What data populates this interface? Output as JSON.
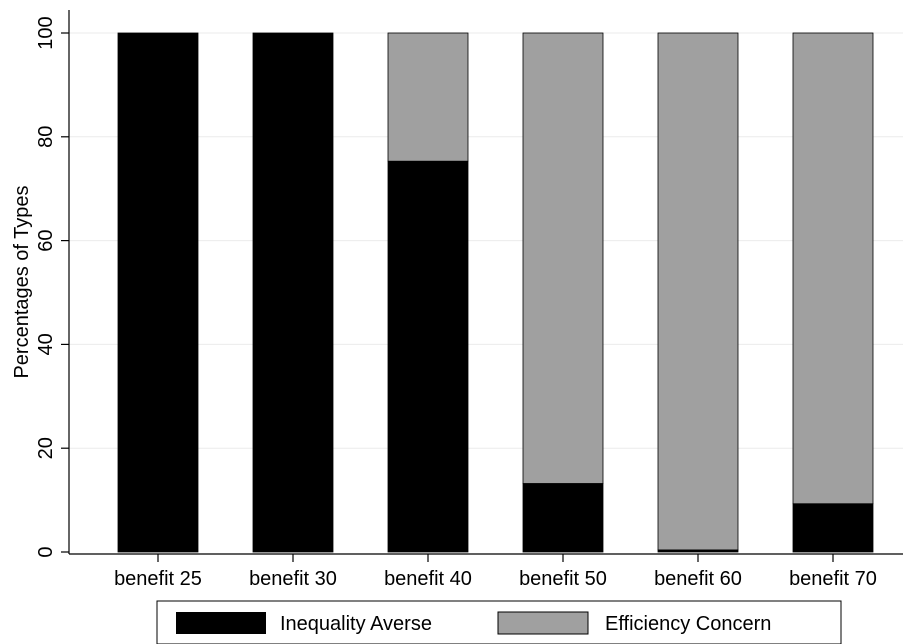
{
  "chart_data": {
    "type": "bar",
    "stacked": true,
    "title": "",
    "xlabel": "",
    "ylabel": "Percentages of Types",
    "ylim": [
      0,
      100
    ],
    "yticks": [
      0,
      20,
      40,
      60,
      80,
      100
    ],
    "grid": true,
    "legend_position": "bottom",
    "categories": [
      "benefit 25",
      "benefit 30",
      "benefit 40",
      "benefit 50",
      "benefit 60",
      "benefit 70"
    ],
    "series": [
      {
        "name": "Inequality Averse",
        "color": "#000000",
        "values": [
          100,
          100,
          75.3,
          13.2,
          0.4,
          9.3
        ]
      },
      {
        "name": "Efficiency Concern",
        "color": "#a0a0a0",
        "values": [
          0,
          0,
          24.7,
          86.8,
          99.6,
          90.7
        ]
      }
    ]
  }
}
